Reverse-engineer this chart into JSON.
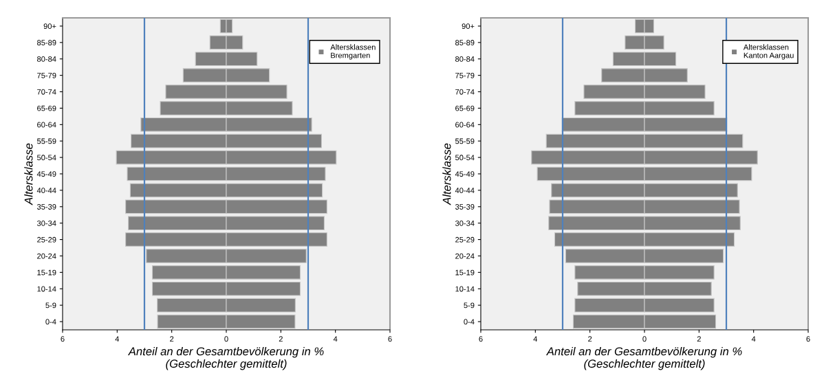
{
  "chart_data": [
    {
      "type": "bar",
      "orientation": "horizontal",
      "ylabel": "Altersklasse",
      "xlabel": "Anteil an der Gesamtbevölkerung in %\n(Geschlechter gemittelt)",
      "categories": [
        "90+",
        "85-89",
        "80-84",
        "75-79",
        "70-74",
        "65-69",
        "60-64",
        "55-59",
        "50-54",
        "45-49",
        "40-44",
        "35-39",
        "30-34",
        "25-29",
        "20-24",
        "15-19",
        "10-14",
        "5-9",
        "0-4"
      ],
      "series": [
        {
          "name": "Altersklassen\nBremgarten",
          "color": "#808080",
          "values": [
            -0.22,
            -0.6,
            -1.13,
            -1.58,
            -2.22,
            -2.42,
            -3.13,
            -3.49,
            -4.03,
            -3.63,
            -3.52,
            -3.69,
            -3.59,
            -3.69,
            -2.93,
            -2.71,
            -2.71,
            -2.53,
            -2.52
          ]
        },
        {
          "color": "#808080",
          "values": [
            0.22,
            0.6,
            1.13,
            1.58,
            2.22,
            2.42,
            3.13,
            3.49,
            4.03,
            3.63,
            3.52,
            3.69,
            3.59,
            3.69,
            2.93,
            2.71,
            2.71,
            2.53,
            2.52
          ]
        }
      ],
      "xlim": [
        -6,
        6
      ],
      "xticks": [
        {
          "value": -6,
          "label": "6"
        },
        {
          "value": -4,
          "label": "4"
        },
        {
          "value": -2,
          "label": "2"
        },
        0,
        2,
        4,
        6
      ],
      "ref_lines": [
        {
          "axis": "x",
          "value": -3,
          "color": "#4f81bd"
        },
        {
          "axis": "x",
          "value": 3,
          "color": "#4f81bd"
        }
      ],
      "legend": "top right",
      "grid": false,
      "stacked": true
    },
    {
      "type": "bar",
      "orientation": "horizontal",
      "ylabel": "Altersklasse",
      "xlabel": "Anteil an der Gesamtbevölkerung in %\n(Geschlechter gemittelt)",
      "categories": [
        "90+",
        "85-89",
        "80-84",
        "75-79",
        "70-74",
        "65-69",
        "60-64",
        "55-59",
        "50-54",
        "45-49",
        "40-44",
        "35-39",
        "30-34",
        "25-29",
        "20-24",
        "15-19",
        "10-14",
        "5-9",
        "0-4"
      ],
      "series": [
        {
          "name": "Altersklassen\nKanton Aargau",
          "color": "#808080",
          "values": [
            -0.34,
            -0.71,
            -1.15,
            -1.57,
            -2.22,
            -2.55,
            -3.02,
            -3.6,
            -4.14,
            -3.93,
            -3.41,
            -3.48,
            -3.51,
            -3.29,
            -2.89,
            -2.55,
            -2.45,
            -2.55,
            -2.61
          ]
        },
        {
          "color": "#808080",
          "values": [
            0.34,
            0.71,
            1.15,
            1.57,
            2.22,
            2.55,
            3.02,
            3.6,
            4.14,
            3.93,
            3.41,
            3.48,
            3.51,
            3.29,
            2.89,
            2.55,
            2.45,
            2.55,
            2.61
          ]
        }
      ],
      "xlim": [
        -6,
        6
      ],
      "xticks": [
        {
          "value": -6,
          "label": "6"
        },
        {
          "value": -4,
          "label": "4"
        },
        {
          "value": -2,
          "label": "2"
        },
        0,
        2,
        4,
        6
      ],
      "ref_lines": [
        {
          "axis": "x",
          "value": -3,
          "color": "#4f81bd"
        },
        {
          "axis": "x",
          "value": 3,
          "color": "#4f81bd"
        }
      ],
      "legend": "top right",
      "grid": false,
      "stacked": true
    }
  ]
}
